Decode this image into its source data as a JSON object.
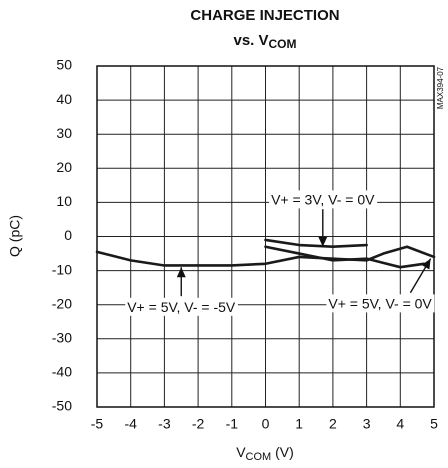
{
  "chart_data": {
    "type": "line",
    "title": "CHARGE INJECTION",
    "subtitle": {
      "text": "vs. V",
      "subscript": "COM"
    },
    "xlabel": {
      "text": "V",
      "subscript": "COM",
      "suffix": " (V)"
    },
    "ylabel": "Q (pC)",
    "side_label": "MAX394-07",
    "xlim": [
      -5,
      5
    ],
    "xticks": [
      -5,
      -4,
      -3,
      -2,
      -1,
      0,
      1,
      2,
      3,
      4,
      5
    ],
    "ylim": [
      -50,
      50
    ],
    "yticks": [
      -50,
      -40,
      -30,
      -20,
      -10,
      0,
      10,
      20,
      30,
      40,
      50
    ],
    "grid": true,
    "series": [
      {
        "name": "V+ = 5V, V- = -5V",
        "color": "#1a1a1a",
        "x": [
          -5,
          -4,
          -3,
          -2,
          -1,
          0,
          1,
          2,
          3,
          3.5,
          4.2,
          5
        ],
        "values": [
          -4.5,
          -7,
          -8.5,
          -8.5,
          -8.5,
          -8,
          -6,
          -6.5,
          -7,
          -5,
          -3,
          -6
        ]
      },
      {
        "name": "V+ = 3V, V- = 0V",
        "color": "#1a1a1a",
        "x": [
          0,
          1,
          2,
          3
        ],
        "values": [
          -1,
          -2.5,
          -3,
          -2.5
        ]
      },
      {
        "name": "V+ = 5V, V- = 0V",
        "color": "#1a1a1a",
        "x": [
          0,
          1,
          2,
          3,
          4,
          4.7
        ],
        "values": [
          -3,
          -5,
          -7,
          -6.5,
          -9,
          -8
        ]
      }
    ]
  }
}
